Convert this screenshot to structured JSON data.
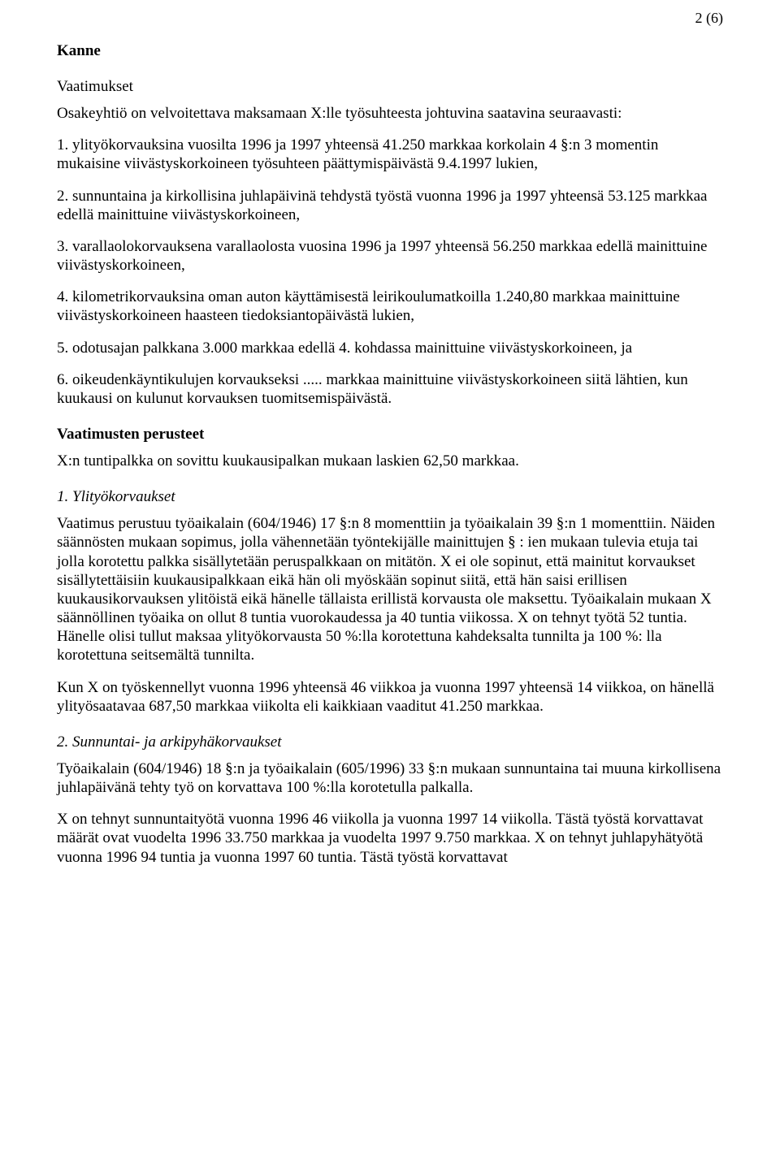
{
  "pageNumber": "2 (6)",
  "h1": "Kanne",
  "h2": "Vaatimukset",
  "p1": "Osakeyhtiö on velvoitettava maksamaan X:lle työsuhteesta johtuvina saatavina seuraavasti:",
  "p2": "1. ylityökorvauksina vuosilta 1996 ja 1997 yhteensä 41.250 markkaa korkolain 4 §:n 3 momentin mukaisine viivästyskorkoineen työsuhteen päättymispäivästä  9.4.1997 lukien,",
  "p3": "2. sunnuntaina ja kirkollisina juhlapäivinä tehdystä työstä vuonna 1996 ja 1997 yhteensä 53.125 markkaa edellä mainittuine viivästyskorkoineen,",
  "p4": "3. varallaolokorvauksena varallaolosta vuosina 1996 ja 1997 yhteensä 56.250 markkaa edellä mainittuine viivästyskorkoineen,",
  "p5": "4. kilometrikorvauksina oman auton käyttämisestä leirikoulumatkoilla 1.240,80 markkaa mainittuine viivästyskorkoineen haasteen tiedoksiantopäivästä lukien,",
  "p6": "5. odotusajan palkkana 3.000 markkaa edellä 4. kohdassa mainittuine viivästyskorkoineen, ja",
  "p7": "6. oikeudenkäyntikulujen korvaukseksi ..... markkaa mainittuine viivästyskorkoineen siitä lähtien, kun kuukausi on kulunut korvauksen tuomitsemispäivästä.",
  "h3": "Vaatimusten perusteet",
  "p8": "X:n tuntipalkka on sovittu kuukausipalkan mukaan laskien 62,50 markkaa.",
  "h4": "1. Ylityökorvaukset",
  "p9": "Vaatimus perustuu työaikalain (604/1946) 17 §:n 8 momenttiin ja työaikalain 39 §:n 1 momenttiin. Näiden säännösten mukaan sopimus, jolla vähennetään työntekijälle mainittujen § : ien mukaan tulevia etuja tai jolla korotettu palkka sisällytetään peruspalkkaan on mitätön. X ei ole sopinut, että mainitut korvaukset sisällytettäisiin kuukausipalkkaan eikä hän oli myöskään sopinut siitä, että hän saisi erillisen kuukausikorvauksen ylitöistä eikä hänelle tällaista erillistä korvausta ole maksettu. Työaikalain mukaan X säännöllinen työaika on ollut 8 tuntia vuorokaudessa ja 40 tuntia viikossa. X on tehnyt työtä 52 tuntia. Hänelle olisi tullut maksaa ylityökorvausta 50 %:lla korotettuna kahdeksalta tunnilta ja 100 %: lla korotettuna seitsemältä tunnilta.",
  "p10": "Kun X on työskennellyt vuonna 1996 yhteensä 46 viikkoa ja vuonna 1997 yhteensä 14 viikkoa, on hänellä ylityösaatavaa 687,50 markkaa viikolta eli kaikkiaan vaaditut 41.250 markkaa.",
  "h5": "2. Sunnuntai- ja arkipyhäkorvaukset",
  "p11": "Työaikalain (604/1946) 18 §:n  ja työaikalain (605/1996)  33 §:n mukaan sunnuntaina tai muuna kirkollisena juhlapäivänä tehty työ on korvattava 100 %:lla korotetulla palkalla.",
  "p12": "X on tehnyt sunnuntaityötä vuonna 1996 46 viikolla ja vuonna 1997 14 viikolla. Tästä työstä korvattavat määrät ovat vuodelta 1996 33.750 markkaa ja vuodelta 1997  9.750 markkaa. X on tehnyt juhlapyhätyötä vuonna 1996  94 tuntia ja vuonna 1997  60 tuntia. Tästä työstä korvattavat"
}
